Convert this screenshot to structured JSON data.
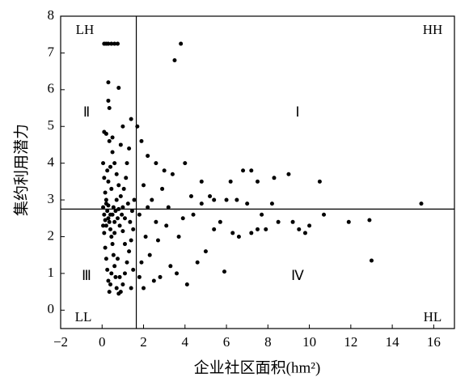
{
  "chart_data": {
    "type": "scatter",
    "x_label": "企业社区面积(hm²)",
    "y_label": "集约利用潜力",
    "xlim": [
      -2,
      17
    ],
    "ylim": [
      -0.5,
      8
    ],
    "xticks": [
      {
        "value": -2,
        "label": "−2"
      },
      0,
      2,
      4,
      6,
      8,
      10,
      12,
      14,
      16
    ],
    "yticks": [
      0,
      1,
      2,
      3,
      4,
      5,
      6,
      7,
      8
    ],
    "reference_lines": {
      "x": 1.65,
      "y": 2.75
    },
    "annotations": [
      "LH",
      "HH",
      "Ⅱ",
      "Ⅰ",
      "Ⅲ",
      "Ⅳ",
      "LL",
      "HL"
    ],
    "color": "#000000",
    "x": [
      0.1,
      0.2,
      0.3,
      0.45,
      0.6,
      0.75,
      3.8,
      3.5,
      0.3,
      0.8,
      0.3,
      0.35,
      1.0,
      0.1,
      0.2,
      0.5,
      1.4,
      1.7,
      1.9,
      2.2,
      2.6,
      3.0,
      3.4,
      4.0,
      4.8,
      5.4,
      6.2,
      6.8,
      7.2,
      7.5,
      8.3,
      9.0,
      10.5,
      15.4,
      13.0,
      12.9,
      11.9,
      10.7,
      10.0,
      9.8,
      9.5,
      9.2,
      8.5,
      7.9,
      7.5,
      7.2,
      6.6,
      6.3,
      5.9,
      5.7,
      5.4,
      5.0,
      4.6,
      4.1,
      3.6,
      3.3,
      2.8,
      2.5,
      2.0,
      1.8,
      2.3,
      2.7,
      3.1,
      3.9,
      4.4,
      4.8,
      5.2,
      6.0,
      6.5,
      7.0,
      7.7,
      8.2,
      4.3,
      3.7,
      2.9,
      2.4,
      2.0,
      1.8,
      2.1,
      2.6,
      3.2,
      1.9,
      2.2,
      0.05,
      0.1,
      0.15,
      0.2,
      0.25,
      0.3,
      0.35,
      0.4,
      0.45,
      0.5,
      0.55,
      0.6,
      0.65,
      0.7,
      0.8,
      0.9,
      1.0,
      1.1,
      1.2,
      1.3,
      1.4,
      1.5,
      1.1,
      1.0,
      0.9,
      0.8,
      0.7,
      0.6,
      0.5,
      0.4,
      0.3,
      0.2,
      0.1,
      0.05,
      0.1,
      0.15,
      0.2,
      0.25,
      0.3,
      0.35,
      0.4,
      0.45,
      0.5,
      0.55,
      0.6,
      0.65,
      0.7,
      0.75,
      0.85,
      0.95,
      1.05,
      1.15,
      1.25,
      1.35,
      1.45,
      1.55,
      1.2,
      1.3,
      0.9,
      1.1,
      0.75,
      0.85,
      1.4,
      1.5,
      0.2,
      0.3,
      0.4,
      0.6,
      0.8,
      1.0,
      0.25,
      0.35,
      0.45,
      0.15,
      0.05
    ],
    "values": [
      7.25,
      7.25,
      7.25,
      7.25,
      7.25,
      7.25,
      7.25,
      6.8,
      6.2,
      6.05,
      5.7,
      5.5,
      5.0,
      4.85,
      4.8,
      4.7,
      5.2,
      5.0,
      4.6,
      4.2,
      4.0,
      3.8,
      3.7,
      4.0,
      3.5,
      3.0,
      3.5,
      3.8,
      3.8,
      3.5,
      3.6,
      3.7,
      3.5,
      2.9,
      1.35,
      2.45,
      2.4,
      2.6,
      2.3,
      2.1,
      2.2,
      2.4,
      2.4,
      2.2,
      2.2,
      2.1,
      2.0,
      2.1,
      1.05,
      2.4,
      2.2,
      1.6,
      1.3,
      0.7,
      1.0,
      1.2,
      0.9,
      0.8,
      0.6,
      0.9,
      1.5,
      1.9,
      2.3,
      2.5,
      2.6,
      2.9,
      3.1,
      3.0,
      3.0,
      2.9,
      2.6,
      2.9,
      3.1,
      2.0,
      3.3,
      3.0,
      3.4,
      2.6,
      2.0,
      2.4,
      2.8,
      1.3,
      2.8,
      4.0,
      3.6,
      3.2,
      2.9,
      2.7,
      2.5,
      2.4,
      2.2,
      2.0,
      1.8,
      1.5,
      1.2,
      0.9,
      0.6,
      0.45,
      0.5,
      0.7,
      1.0,
      1.3,
      1.6,
      1.9,
      2.2,
      2.5,
      2.8,
      3.1,
      3.4,
      3.7,
      4.0,
      4.3,
      3.9,
      3.5,
      3.0,
      2.6,
      2.3,
      2.1,
      1.7,
      1.4,
      1.1,
      0.8,
      0.5,
      0.7,
      1.0,
      2.6,
      2.8,
      2.4,
      2.7,
      3.0,
      2.5,
      2.3,
      2.6,
      3.3,
      3.6,
      2.9,
      2.4,
      2.7,
      3.0,
      4.0,
      4.4,
      4.5,
      1.8,
      1.4,
      0.9,
      0.6,
      1.1,
      2.3,
      2.85,
      2.6,
      2.1,
      2.75,
      2.15,
      3.8,
      4.6,
      3.3,
      2.45,
      2.8
    ]
  }
}
